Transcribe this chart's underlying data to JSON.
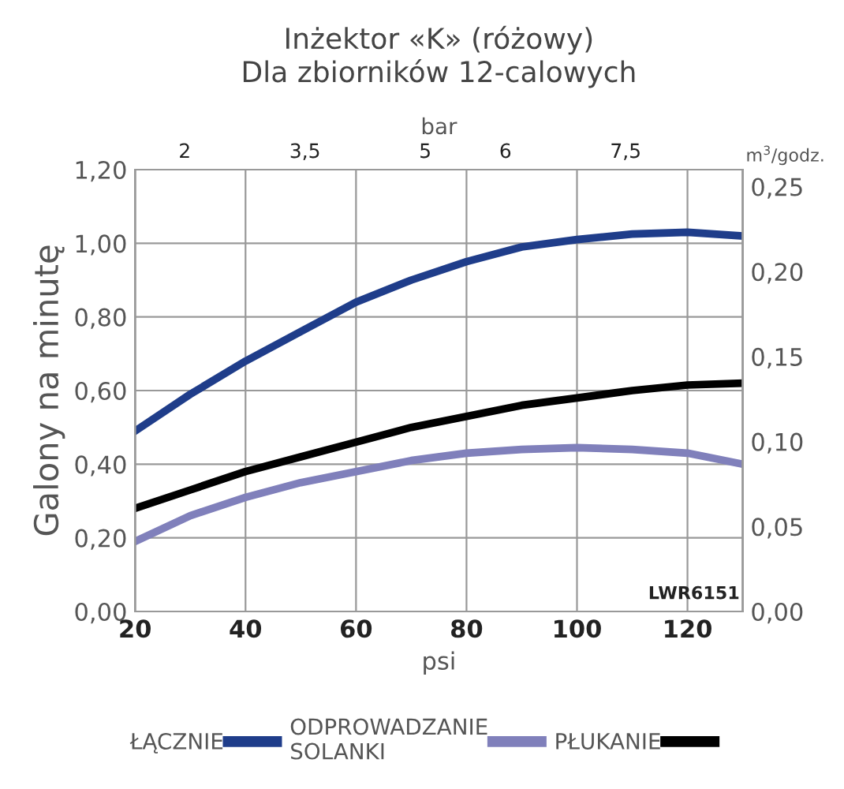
{
  "chart_data": {
    "type": "line",
    "title": "Inżektor «K» (różowy)\nDla zbiorników 12-calowych",
    "xlabel": "psi",
    "ylabel": "Galony na minutę",
    "x2label": "bar",
    "y2label": "m$^{3}$/godz.",
    "x": [
      20,
      30,
      40,
      50,
      60,
      70,
      80,
      90,
      100,
      110,
      120,
      130
    ],
    "series": [
      {
        "name": "ŁĄCZNIE",
        "color": "#1f3d8a",
        "values": [
          0.49,
          0.59,
          0.68,
          0.76,
          0.84,
          0.9,
          0.95,
          0.99,
          1.01,
          1.025,
          1.03,
          1.02
        ]
      },
      {
        "name": "ODPROWADZANIE\nSOLANKI",
        "color": "#8080bb",
        "values": [
          0.19,
          0.26,
          0.31,
          0.35,
          0.38,
          0.41,
          0.43,
          0.44,
          0.445,
          0.44,
          0.43,
          0.4
        ]
      },
      {
        "name": "PŁUKANIE",
        "color": "#000000",
        "values": [
          0.28,
          0.33,
          0.38,
          0.42,
          0.46,
          0.5,
          0.53,
          0.56,
          0.58,
          0.6,
          0.615,
          0.62
        ]
      }
    ],
    "xlim": [
      20,
      130
    ],
    "xticks": [
      20,
      40,
      60,
      80,
      100,
      120
    ],
    "ylim": [
      0,
      1.2
    ],
    "yticks": [
      {
        "value": 0,
        "label": "0,00"
      },
      {
        "value": 0.2,
        "label": "0,20"
      },
      {
        "value": 0.4,
        "label": "0,40"
      },
      {
        "value": 0.6,
        "label": "0,60"
      },
      {
        "value": 0.8,
        "label": "0,80"
      },
      {
        "value": 1.0,
        "label": "1,00"
      },
      {
        "value": 1.2,
        "label": "1,20"
      }
    ],
    "x2lim": [
      1.38,
      8.96
    ],
    "x2ticks": [
      2,
      {
        "value": 3.5,
        "label": "3,5"
      },
      5,
      6,
      {
        "value": 7.5,
        "label": "7,5"
      }
    ],
    "y2lim": [
      0,
      0.26
    ],
    "y2ticks": [
      {
        "value": 0,
        "label": "0,00"
      },
      {
        "value": 0.05,
        "label": "0,05"
      },
      {
        "value": 0.1,
        "label": "0,10"
      },
      {
        "value": 0.15,
        "label": "0,15"
      },
      {
        "value": 0.2,
        "label": "0,20"
      },
      {
        "value": 0.25,
        "label": "0,25"
      }
    ],
    "annotations": [
      "LWR6151"
    ],
    "grid": true,
    "legend": "bottom",
    "marker": "none",
    "line_style": "solid"
  }
}
